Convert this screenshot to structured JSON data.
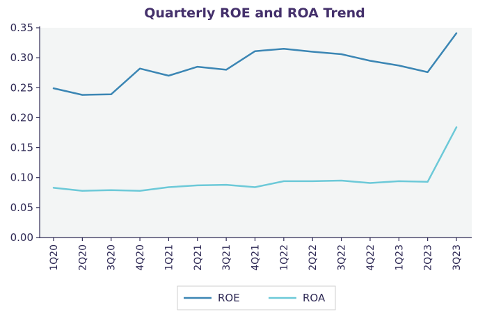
{
  "chart_data": {
    "type": "line",
    "title": "Quarterly ROE and ROA Trend",
    "xlabel": "",
    "ylabel": "",
    "categories": [
      "1Q20",
      "2Q20",
      "3Q20",
      "4Q20",
      "1Q21",
      "2Q21",
      "3Q21",
      "4Q21",
      "1Q22",
      "2Q22",
      "3Q22",
      "4Q22",
      "1Q23",
      "2Q23",
      "3Q23"
    ],
    "series": [
      {
        "name": "ROE",
        "color": "#3b86b4",
        "values": [
          0.249,
          0.238,
          0.239,
          0.282,
          0.27,
          0.285,
          0.28,
          0.311,
          0.315,
          0.31,
          0.306,
          0.295,
          0.287,
          0.276,
          0.341
        ]
      },
      {
        "name": "ROA",
        "color": "#6cc9d8",
        "values": [
          0.083,
          0.078,
          0.079,
          0.078,
          0.084,
          0.087,
          0.088,
          0.084,
          0.094,
          0.094,
          0.095,
          0.091,
          0.094,
          0.093,
          0.184
        ]
      }
    ],
    "ylim": [
      0.0,
      0.35
    ],
    "yticks": [
      "0.00",
      "0.05",
      "0.10",
      "0.15",
      "0.20",
      "0.25",
      "0.30",
      "0.35"
    ],
    "grid": false,
    "plot_background": "#f3f5f5",
    "legend_position": "bottom-center"
  }
}
